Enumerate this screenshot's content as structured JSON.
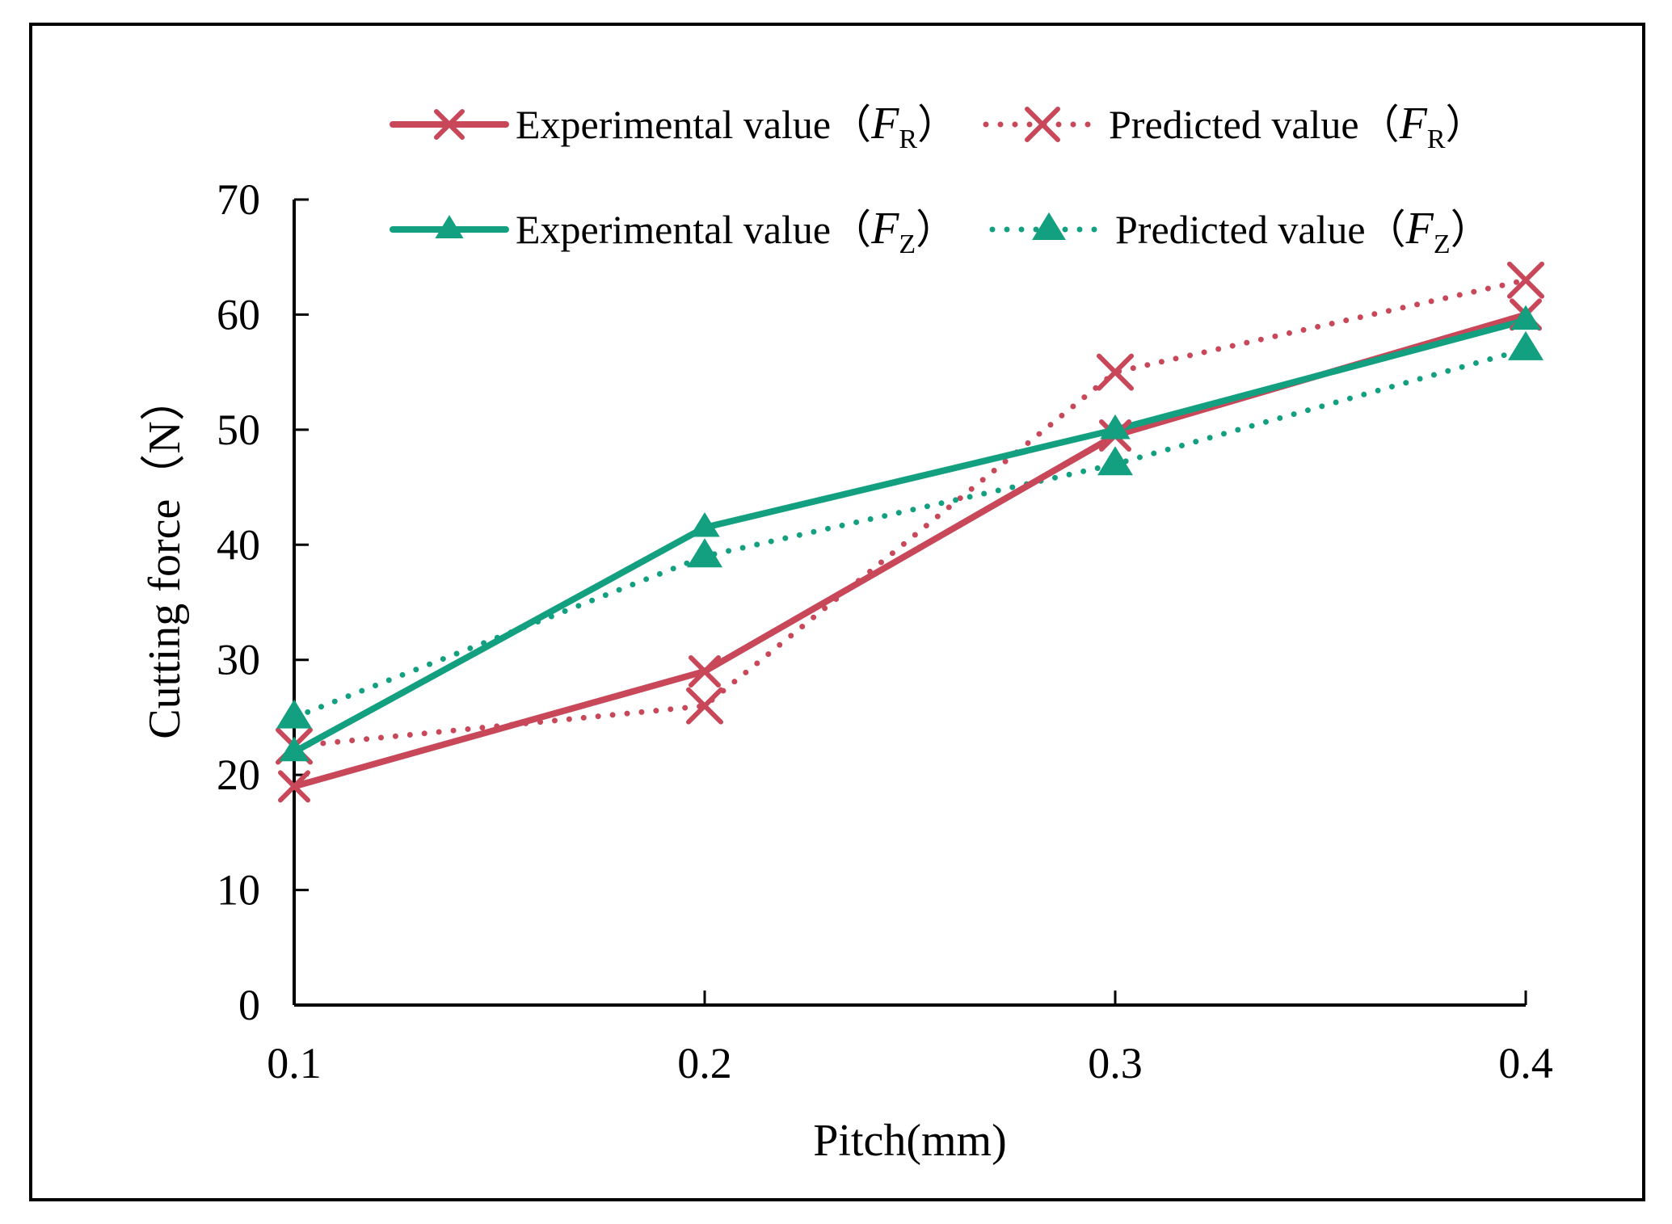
{
  "chart_data": {
    "type": "line",
    "title": "",
    "xlabel": "Pitch(mm)",
    "ylabel": "Cutting force（N）",
    "x": [
      0.1,
      0.2,
      0.3,
      0.4
    ],
    "x_tick_labels": [
      "0.1",
      "0.2",
      "0.3",
      "0.4"
    ],
    "y_ticks": [
      0,
      10,
      20,
      30,
      40,
      50,
      60,
      70
    ],
    "y_tick_labels": [
      "0",
      "10",
      "20",
      "30",
      "40",
      "50",
      "60",
      "70"
    ],
    "xlim": [
      0.1,
      0.4
    ],
    "ylim": [
      0,
      70
    ],
    "grid": false,
    "legend_position": "top",
    "series": [
      {
        "id": "exp-fr",
        "name": "Experimental value（FR）",
        "legend_prefix": "Experimental value（",
        "legend_var": "F",
        "legend_sub": "R",
        "legend_suffix": "）",
        "values": [
          19,
          29,
          49.5,
          60
        ],
        "color": "#c8485a",
        "style": "solid",
        "marker": "x"
      },
      {
        "id": "pred-fr",
        "name": "Predicted value（FR）",
        "legend_prefix": "Predicted value（",
        "legend_var": "F",
        "legend_sub": "R",
        "legend_suffix": "）",
        "values": [
          22.5,
          26,
          55,
          63
        ],
        "color": "#c8485a",
        "style": "dotted",
        "marker": "x"
      },
      {
        "id": "exp-fz",
        "name": "Experimental value（FZ）",
        "legend_prefix": "Experimental value（",
        "legend_var": "F",
        "legend_sub": "Z",
        "legend_suffix": "）",
        "values": [
          22,
          41.5,
          50,
          59.5
        ],
        "color": "#13a080",
        "style": "solid",
        "marker": "triangle"
      },
      {
        "id": "pred-fz",
        "name": "Predicted value（FZ）",
        "legend_prefix": "Predicted value（",
        "legend_var": "F",
        "legend_sub": "Z",
        "legend_suffix": "）",
        "values": [
          25,
          39,
          47,
          57
        ],
        "color": "#13a080",
        "style": "dotted",
        "marker": "triangle"
      }
    ]
  }
}
